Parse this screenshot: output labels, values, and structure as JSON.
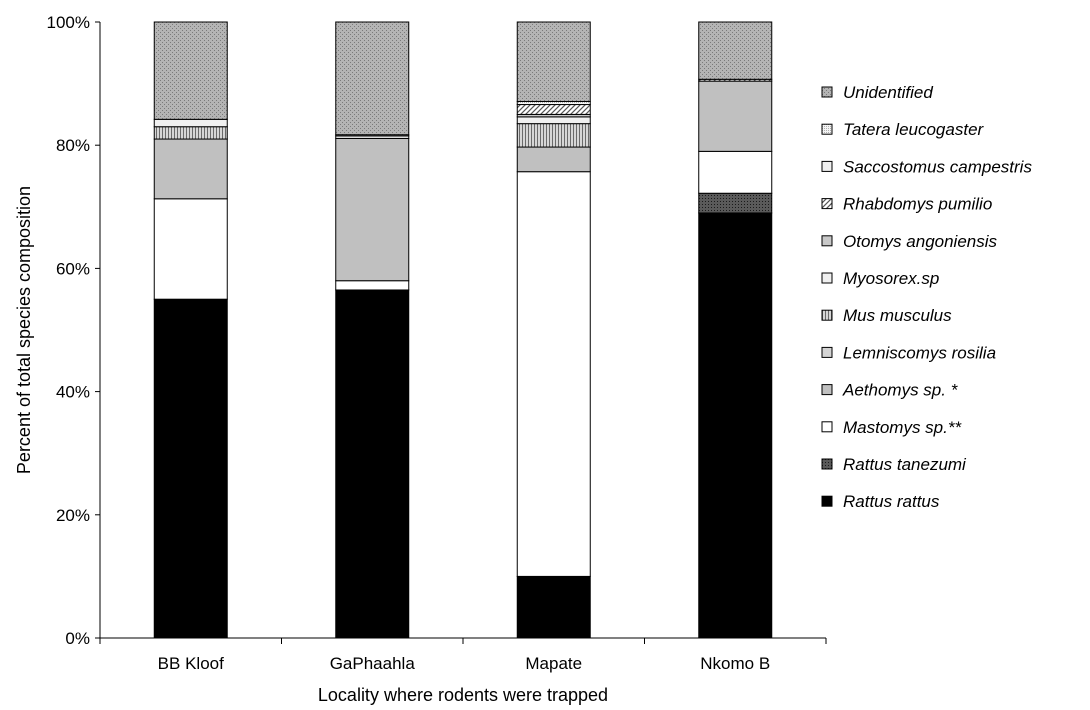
{
  "chart_data": {
    "type": "bar",
    "stacked": true,
    "percent": true,
    "title": "",
    "xlabel": "Locality where rodents were trapped",
    "ylabel": "Percent of total species composition",
    "ylim": [
      0,
      100
    ],
    "yticks": [
      "0%",
      "20%",
      "40%",
      "60%",
      "80%",
      "100%"
    ],
    "grid": false,
    "legend_position": "right",
    "categories": [
      "BB Kloof",
      "GaPhaahla",
      "Mapate",
      "Nkomo B"
    ],
    "series": [
      {
        "name": "Rattus rattus",
        "color": "#000000",
        "pattern": "solid",
        "values": [
          55.0,
          56.5,
          10.0,
          69.0
        ]
      },
      {
        "name": "Rattus tanezumi",
        "color": "#404040",
        "pattern": "dots-dark",
        "values": [
          0,
          0,
          0,
          3.2
        ]
      },
      {
        "name": "Mastomys sp.**",
        "color": "#ffffff",
        "pattern": "solid",
        "values": [
          16.3,
          1.5,
          65.7,
          6.8
        ]
      },
      {
        "name": "Aethomys sp. *",
        "color": "#c0c0c0",
        "pattern": "solid",
        "values": [
          9.7,
          23.1,
          4.0,
          11.4
        ]
      },
      {
        "name": "Lemniscomys rosilia",
        "color": "#d4d4d4",
        "pattern": "solid",
        "values": [
          0,
          0,
          0,
          0
        ]
      },
      {
        "name": "Mus musculus",
        "color": "#b0b0b0",
        "pattern": "vertical",
        "values": [
          2.0,
          0,
          3.8,
          0
        ]
      },
      {
        "name": "Myosorex.sp",
        "color": "#f0f0f0",
        "pattern": "solid",
        "values": [
          0,
          0.4,
          1.1,
          0
        ]
      },
      {
        "name": "Otomys angoniensis",
        "color": "#c8c8c8",
        "pattern": "solid",
        "values": [
          0,
          0,
          0.4,
          0
        ]
      },
      {
        "name": "Rhabdomys pumilio",
        "color": "#ffffff",
        "pattern": "diagonal",
        "values": [
          0,
          0,
          1.6,
          0.3
        ]
      },
      {
        "name": "Saccostomus campestris",
        "color": "#f0f0f0",
        "pattern": "solid",
        "values": [
          1.2,
          0.2,
          0,
          0
        ]
      },
      {
        "name": "Tatera leucogaster",
        "color": "#e8e8e8",
        "pattern": "fine",
        "values": [
          0,
          0,
          0.5,
          0
        ]
      },
      {
        "name": "Unidentified",
        "color": "#a8a8a8",
        "pattern": "dots",
        "values": [
          15.8,
          18.3,
          12.9,
          9.3
        ]
      }
    ]
  }
}
